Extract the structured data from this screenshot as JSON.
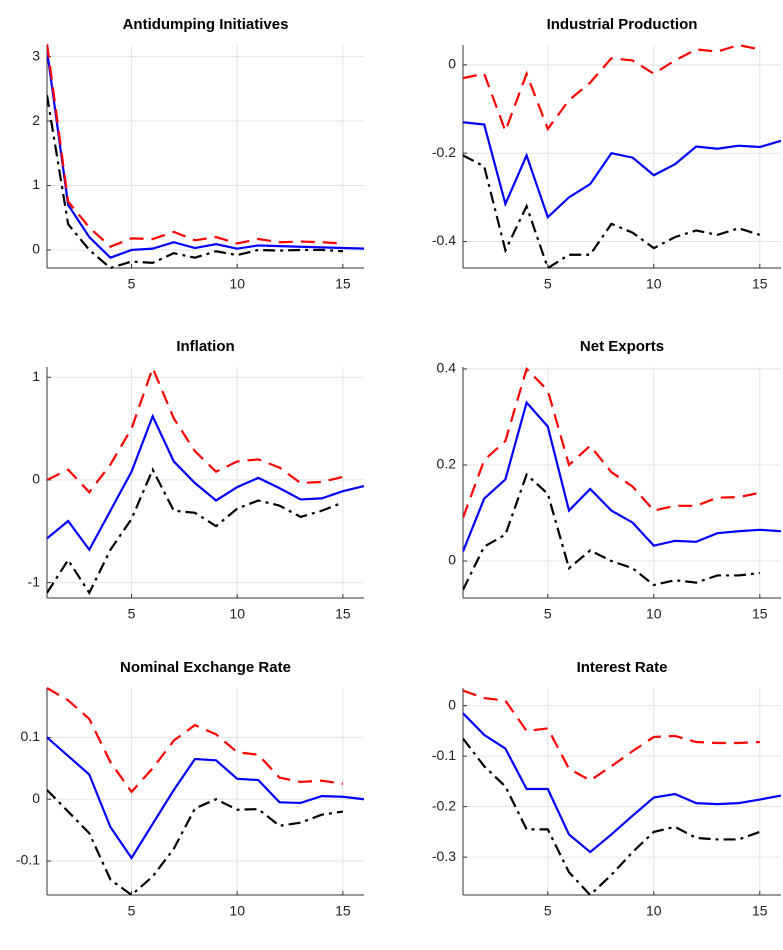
{
  "chart_data": [
    {
      "type": "line",
      "title": "Antidumping Initiatives",
      "x": [
        1,
        2,
        3,
        4,
        5,
        6,
        7,
        8,
        9,
        10,
        11,
        12,
        13,
        14,
        15,
        16
      ],
      "xlim": [
        1,
        16
      ],
      "xticks": [
        5,
        10,
        15
      ],
      "ylim": [
        -0.28,
        3.18
      ],
      "yticks": [
        0,
        1,
        2,
        3
      ],
      "grid": true,
      "series": [
        {
          "color": "#0000ff",
          "style": "solid",
          "values": [
            3.1,
            0.7,
            0.2,
            -0.12,
            0,
            0.02,
            0.12,
            0.03,
            0.09,
            0.02,
            0.07,
            0.06,
            0.05,
            0.04,
            0.03,
            0.02
          ]
        },
        {
          "color": "#ff0000",
          "style": "dashed",
          "values": [
            3.2,
            0.75,
            0.35,
            0.05,
            0.18,
            0.17,
            0.28,
            0.15,
            0.2,
            0.1,
            0.17,
            0.12,
            0.13,
            0.12,
            0.1,
            null
          ]
        },
        {
          "color": "#000000",
          "style": "dashdot",
          "values": [
            2.4,
            0.4,
            0.0,
            -0.28,
            -0.18,
            -0.2,
            -0.05,
            -0.12,
            -0.02,
            -0.08,
            0.0,
            -0.01,
            0.0,
            0.0,
            -0.02,
            null
          ]
        }
      ]
    },
    {
      "type": "line",
      "title": "Industrial Production",
      "x": [
        1,
        2,
        3,
        4,
        5,
        6,
        7,
        8,
        9,
        10,
        11,
        12,
        13,
        14,
        15,
        16
      ],
      "xlim": [
        1,
        16
      ],
      "xticks": [
        5,
        10,
        15
      ],
      "ylim": [
        -0.46,
        0.045
      ],
      "yticks": [
        -0.4,
        -0.2,
        0
      ],
      "grid": true,
      "series": [
        {
          "color": "#0000ff",
          "style": "solid",
          "values": [
            -0.13,
            -0.135,
            -0.315,
            -0.205,
            -0.345,
            -0.3,
            -0.27,
            -0.2,
            -0.21,
            -0.25,
            -0.225,
            -0.185,
            -0.19,
            -0.183,
            -0.186,
            -0.172
          ]
        },
        {
          "color": "#ff0000",
          "style": "dashed",
          "values": [
            -0.03,
            -0.02,
            -0.15,
            -0.02,
            -0.145,
            -0.08,
            -0.04,
            0.015,
            0.01,
            -0.02,
            0.01,
            0.035,
            0.03,
            0.045,
            0.035,
            null
          ]
        },
        {
          "color": "#000000",
          "style": "dashdot",
          "values": [
            -0.205,
            -0.23,
            -0.42,
            -0.32,
            -0.46,
            -0.43,
            -0.43,
            -0.36,
            -0.38,
            -0.415,
            -0.39,
            -0.375,
            -0.385,
            -0.37,
            -0.385,
            null
          ]
        }
      ]
    },
    {
      "type": "line",
      "title": "Inflation",
      "x": [
        1,
        2,
        3,
        4,
        5,
        6,
        7,
        8,
        9,
        10,
        11,
        12,
        13,
        14,
        15,
        16
      ],
      "xlim": [
        1,
        16
      ],
      "xticks": [
        5,
        10,
        15
      ],
      "ylim": [
        -1.15,
        1.1
      ],
      "yticks": [
        -1,
        0,
        1
      ],
      "grid": true,
      "series": [
        {
          "color": "#0000ff",
          "style": "solid",
          "values": [
            -0.57,
            -0.4,
            -0.68,
            -0.3,
            0.08,
            0.62,
            0.18,
            -0.03,
            -0.2,
            -0.07,
            0.02,
            -0.08,
            -0.19,
            -0.18,
            -0.11,
            -0.06
          ]
        },
        {
          "color": "#ff0000",
          "style": "dashed",
          "values": [
            0.0,
            0.1,
            -0.12,
            0.15,
            0.5,
            1.09,
            0.6,
            0.28,
            0.08,
            0.18,
            0.2,
            0.12,
            -0.03,
            -0.02,
            0.03,
            null
          ]
        },
        {
          "color": "#000000",
          "style": "dashdot",
          "values": [
            -1.1,
            -0.78,
            -1.1,
            -0.68,
            -0.38,
            0.1,
            -0.3,
            -0.32,
            -0.45,
            -0.28,
            -0.2,
            -0.25,
            -0.36,
            -0.3,
            -0.22,
            null
          ]
        }
      ]
    },
    {
      "type": "line",
      "title": "Net Exports",
      "x": [
        1,
        2,
        3,
        4,
        5,
        6,
        7,
        8,
        9,
        10,
        11,
        12,
        13,
        14,
        15,
        16
      ],
      "xlim": [
        1,
        16
      ],
      "xticks": [
        5,
        10,
        15
      ],
      "ylim": [
        -0.077,
        0.404
      ],
      "yticks": [
        0,
        0.2,
        0.4
      ],
      "grid": true,
      "series": [
        {
          "color": "#0000ff",
          "style": "solid",
          "values": [
            0.02,
            0.13,
            0.17,
            0.33,
            0.28,
            0.105,
            0.15,
            0.105,
            0.08,
            0.032,
            0.042,
            0.04,
            0.058,
            0.062,
            0.065,
            0.062
          ]
        },
        {
          "color": "#ff0000",
          "style": "dashed",
          "values": [
            0.09,
            0.21,
            0.25,
            0.4,
            0.355,
            0.2,
            0.24,
            0.185,
            0.155,
            0.105,
            0.115,
            0.115,
            0.132,
            0.133,
            0.142,
            null
          ]
        },
        {
          "color": "#000000",
          "style": "dashdot",
          "values": [
            -0.06,
            0.03,
            0.055,
            0.18,
            0.14,
            -0.015,
            0.022,
            0.0,
            -0.015,
            -0.05,
            -0.04,
            -0.045,
            -0.03,
            -0.03,
            -0.025,
            null
          ]
        }
      ]
    },
    {
      "type": "line",
      "title": "Nominal Exchange Rate",
      "x": [
        1,
        2,
        3,
        4,
        5,
        6,
        7,
        8,
        9,
        10,
        11,
        12,
        13,
        14,
        15,
        16
      ],
      "xlim": [
        1,
        16
      ],
      "xticks": [
        5,
        10,
        15
      ],
      "ylim": [
        -0.155,
        0.18
      ],
      "yticks": [
        -0.1,
        0,
        0.1
      ],
      "grid": true,
      "series": [
        {
          "color": "#0000ff",
          "style": "solid",
          "values": [
            0.1,
            0.07,
            0.04,
            -0.045,
            -0.095,
            -0.04,
            0.015,
            0.065,
            0.063,
            0.033,
            0.031,
            -0.005,
            -0.006,
            0.005,
            0.004,
            0.0
          ]
        },
        {
          "color": "#ff0000",
          "style": "dashed",
          "values": [
            0.18,
            0.16,
            0.13,
            0.06,
            0.012,
            0.05,
            0.095,
            0.12,
            0.105,
            0.076,
            0.072,
            0.035,
            0.028,
            0.03,
            0.025,
            null
          ]
        },
        {
          "color": "#000000",
          "style": "dashdot",
          "values": [
            0.015,
            -0.02,
            -0.055,
            -0.13,
            -0.155,
            -0.125,
            -0.08,
            -0.015,
            0.0,
            -0.017,
            -0.016,
            -0.043,
            -0.038,
            -0.025,
            -0.02,
            null
          ]
        }
      ]
    },
    {
      "type": "line",
      "title": "Interest Rate",
      "x": [
        1,
        2,
        3,
        4,
        5,
        6,
        7,
        8,
        9,
        10,
        11,
        12,
        13,
        14,
        15,
        16
      ],
      "xlim": [
        1,
        16
      ],
      "xticks": [
        5,
        10,
        15
      ],
      "ylim": [
        -0.375,
        0.035
      ],
      "yticks": [
        -0.3,
        -0.2,
        -0.1,
        0
      ],
      "grid": true,
      "series": [
        {
          "color": "#0000ff",
          "style": "solid",
          "values": [
            -0.015,
            -0.058,
            -0.085,
            -0.165,
            -0.165,
            -0.255,
            -0.29,
            -0.255,
            -0.218,
            -0.182,
            -0.175,
            -0.193,
            -0.195,
            -0.193,
            -0.186,
            -0.178
          ]
        },
        {
          "color": "#ff0000",
          "style": "dashed",
          "values": [
            0.03,
            0.015,
            0.01,
            -0.05,
            -0.045,
            -0.125,
            -0.148,
            -0.12,
            -0.09,
            -0.062,
            -0.06,
            -0.072,
            -0.074,
            -0.074,
            -0.072,
            null
          ]
        },
        {
          "color": "#000000",
          "style": "dashdot",
          "values": [
            -0.065,
            -0.12,
            -0.16,
            -0.245,
            -0.245,
            -0.33,
            -0.375,
            -0.335,
            -0.29,
            -0.25,
            -0.24,
            -0.262,
            -0.265,
            -0.265,
            -0.25,
            null
          ]
        }
      ]
    }
  ]
}
